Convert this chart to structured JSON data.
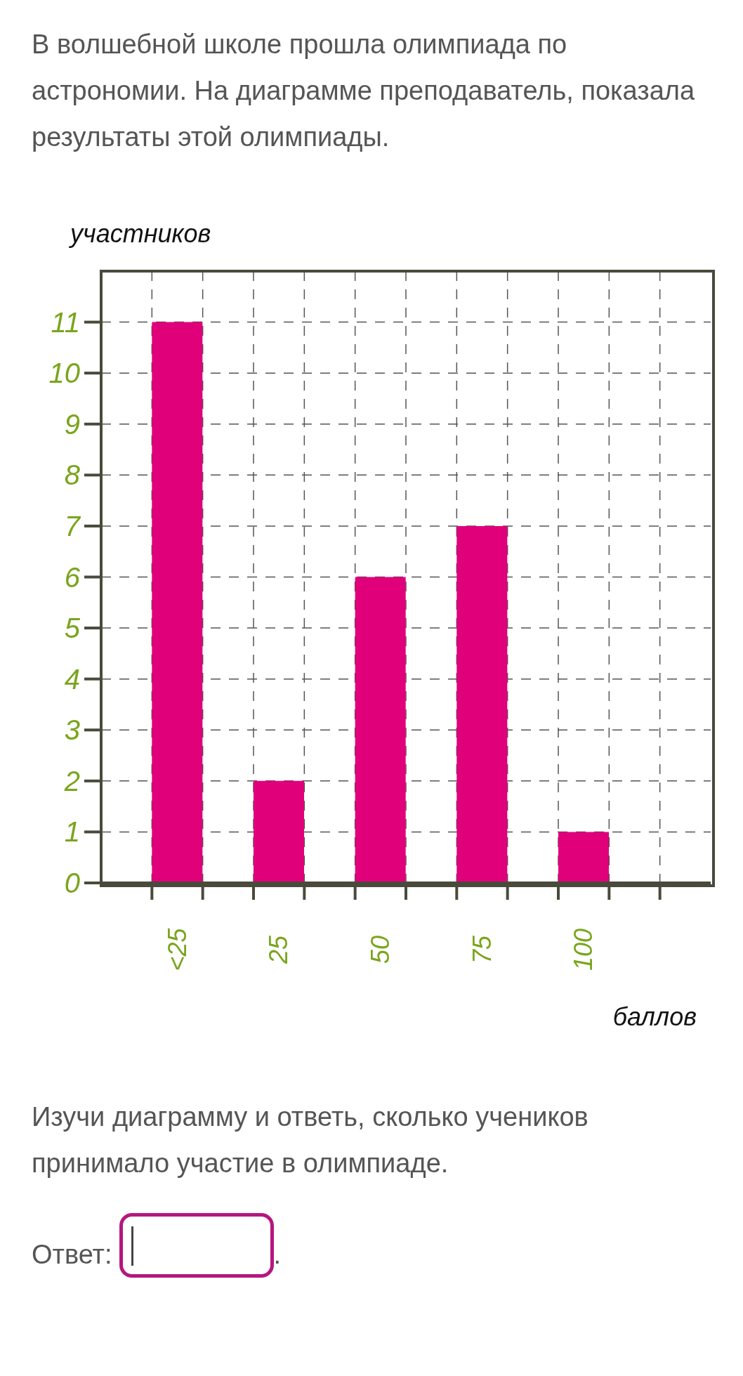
{
  "chart_data": {
    "type": "bar",
    "title": "В волшебной школе прошла олимпиада по астрономии. На диаграмме преподаватель, показала результаты этой олимпиады.",
    "xlabel": "баллов",
    "ylabel": "участников",
    "categories": [
      "<25",
      "25",
      "50",
      "75",
      "100"
    ],
    "values": [
      11,
      2,
      6,
      7,
      1
    ],
    "color": "#e0007a",
    "ylim": [
      0,
      12
    ],
    "yticks": [
      0,
      1,
      2,
      3,
      4,
      5,
      6,
      7,
      8,
      9,
      10,
      11
    ],
    "grid": true,
    "annotations": [
      "Изучи диаграмму и ответь, сколько учеников принимало участие в олимпиаде.",
      "Ответ:",
      "."
    ]
  }
}
